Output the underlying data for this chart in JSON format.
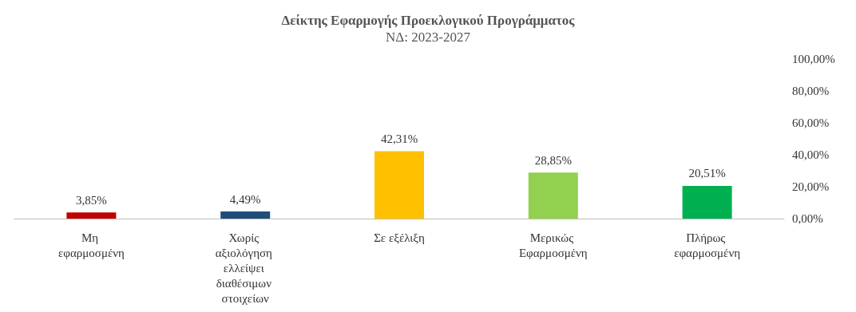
{
  "chart_data": {
    "type": "bar",
    "title": "Δείκτης Εφαρμογής Προεκλογικού Προγράμματος",
    "subtitle": "ΝΔ: 2023-2027",
    "categories": [
      "Μη εφαρμοσμένη",
      "Χωρίς αξιολόγηση ελλείψει διαθέσιμων στοιχείων",
      "Σε εξέλιξη",
      "Μερικώς Εφαρμοσμένη",
      "Πλήρως εφαρμοσμένη"
    ],
    "values": [
      3.85,
      4.49,
      42.31,
      28.85,
      20.51
    ],
    "value_labels": [
      "3,85%",
      "4,49%",
      "42,31%",
      "28,85%",
      "20,51%"
    ],
    "colors": [
      "#c00000",
      "#1f4e79",
      "#ffc000",
      "#92d050",
      "#00b050"
    ],
    "ylim": [
      0,
      100
    ],
    "yticks": [
      {
        "value": 0,
        "label": "0,00%"
      },
      {
        "value": 20,
        "label": "20,00%"
      },
      {
        "value": 40,
        "label": "40,00%"
      },
      {
        "value": 60,
        "label": "60,00%"
      },
      {
        "value": 80,
        "label": "80,00%"
      },
      {
        "value": 100,
        "label": "100,00%"
      }
    ],
    "grid": false
  }
}
